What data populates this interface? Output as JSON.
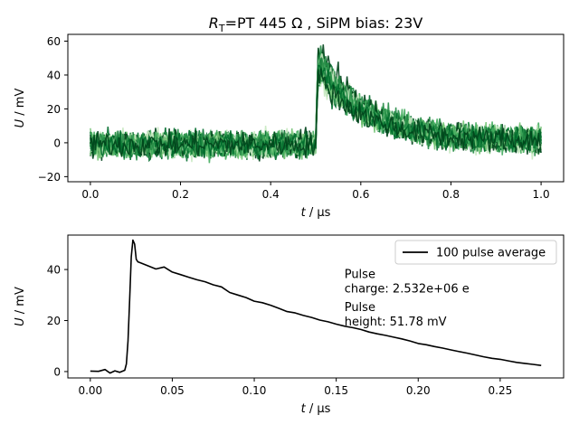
{
  "chart_data": [
    {
      "type": "line",
      "title": {
        "prefix": "R",
        "subscript": "T",
        "suffix": "=PT 445 Ω , SiPM bias: 23V"
      },
      "xlabel": {
        "var": "t",
        "unit": " / µs"
      },
      "ylabel": {
        "var": "U",
        "unit": " / mV"
      },
      "xlim": [
        -0.05,
        1.05
      ],
      "ylim": [
        -23,
        64
      ],
      "xticks": [
        0.0,
        0.2,
        0.4,
        0.6,
        0.8,
        1.0
      ],
      "xtick_labels": [
        "0.0",
        "0.2",
        "0.4",
        "0.6",
        "0.8",
        "1.0"
      ],
      "yticks": [
        -20,
        0,
        20,
        40,
        60
      ],
      "ytick_labels": [
        "−20",
        "0",
        "20",
        "40",
        "60"
      ],
      "series_count": 100,
      "series_colors": [
        "#c7e9c0",
        "#74c476",
        "#41ab5d",
        "#238b45",
        "#006d2c",
        "#00441b"
      ],
      "pulse_shape": {
        "baseline_mean": -1,
        "baseline_noise_range": [
          -12,
          10
        ],
        "rise_time": 0.5,
        "peak": 59,
        "peak_time": 0.505,
        "decay_to_zero_time": 0.7,
        "end_time": 1.0
      },
      "grid": false,
      "legend": null
    },
    {
      "type": "line",
      "xlabel": {
        "var": "t",
        "unit": " / µs"
      },
      "ylabel": {
        "var": "U",
        "unit": " / mV"
      },
      "xlim": [
        -0.0137,
        0.2887
      ],
      "ylim": [
        -2.5,
        53.5
      ],
      "xticks": [
        0.0,
        0.05,
        0.1,
        0.15,
        0.2,
        0.25
      ],
      "xtick_labels": [
        "0.00",
        "0.05",
        "0.10",
        "0.15",
        "0.20",
        "0.25"
      ],
      "yticks": [
        0,
        20,
        40
      ],
      "ytick_labels": [
        "0",
        "20",
        "40"
      ],
      "series": [
        {
          "name": "100 pulse average",
          "color": "#000000",
          "x": [
            0.0,
            0.005,
            0.009,
            0.012,
            0.015,
            0.018,
            0.021,
            0.022,
            0.023,
            0.024,
            0.025,
            0.026,
            0.027,
            0.028,
            0.029,
            0.03,
            0.035,
            0.04,
            0.045,
            0.05,
            0.055,
            0.06,
            0.065,
            0.07,
            0.075,
            0.08,
            0.085,
            0.09,
            0.095,
            0.1,
            0.105,
            0.11,
            0.115,
            0.12,
            0.125,
            0.13,
            0.135,
            0.14,
            0.145,
            0.15,
            0.155,
            0.16,
            0.165,
            0.17,
            0.175,
            0.18,
            0.185,
            0.19,
            0.195,
            0.2,
            0.205,
            0.21,
            0.215,
            0.22,
            0.225,
            0.23,
            0.235,
            0.24,
            0.245,
            0.25,
            0.255,
            0.26,
            0.265,
            0.27,
            0.275
          ],
          "y": [
            0.2,
            0.1,
            0.8,
            -0.6,
            0.3,
            -0.3,
            0.5,
            3,
            12,
            28,
            45,
            51.5,
            50,
            44,
            43,
            42.8,
            41.5,
            40.2,
            41,
            39,
            38,
            37,
            36,
            35.2,
            34,
            33.2,
            31,
            30,
            29,
            27.6,
            27,
            26,
            24.8,
            23.5,
            23,
            22,
            21.2,
            20.2,
            19.5,
            18.6,
            17.8,
            17.2,
            16.5,
            15.5,
            14.8,
            14.2,
            13.5,
            12.8,
            12,
            11,
            10.5,
            9.8,
            9.2,
            8.5,
            7.8,
            7.2,
            6.5,
            5.8,
            5.2,
            4.8,
            4.2,
            3.6,
            3.2,
            2.8,
            2.4
          ]
        }
      ],
      "annotations": [
        {
          "lines": [
            "Pulse",
            "charge: 2.532e+06 e"
          ],
          "x": 0.155,
          "y": 31
        },
        {
          "lines": [
            "Pulse",
            "height: 51.78 mV"
          ],
          "x": 0.155,
          "y": 18
        }
      ],
      "grid": false,
      "legend": "top-right"
    }
  ]
}
